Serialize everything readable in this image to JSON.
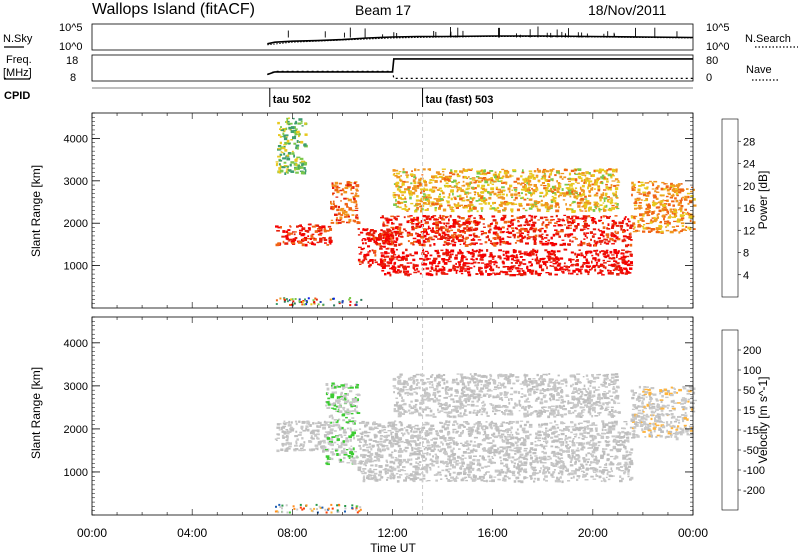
{
  "header": {
    "station": "Wallops Island (fitACF)",
    "beam": "Beam 17",
    "date": "18/Nov/2011"
  },
  "noise_panel": {
    "left_label": "N.Sky",
    "right_label": "N.Search",
    "left_ticks": [
      "10^5",
      "10^0"
    ],
    "right_ticks": [
      "10^5",
      "10^0"
    ]
  },
  "freq_panel": {
    "left_label_1": "Freq.",
    "left_label_2": "[MHz]",
    "right_label": "Nave",
    "left_ticks": [
      "18",
      "8"
    ],
    "right_ticks": [
      "80",
      "0"
    ]
  },
  "cpid_panel": {
    "label": "CPID",
    "programs": [
      {
        "name": "tau 502",
        "start_hour": 7.1
      },
      {
        "name": "tau (fast) 503",
        "start_hour": 13.2
      }
    ]
  },
  "colors": {
    "power": [
      "#0a1ee6",
      "#2346b4",
      "#2f7a5a",
      "#3e9e6e",
      "#7ac84a",
      "#e8c81e",
      "#f0961e",
      "#f06414",
      "#e61e0a",
      "#f50000"
    ],
    "velocity": [
      "#f50000",
      "#ff3c00",
      "#ff8c1e",
      "#ffb43c",
      "#c8c8c8",
      "#c8c8c8",
      "#3ccc32",
      "#2a9a4a",
      "#1e5fb4",
      "#1414c8"
    ],
    "ground_scatter": "#bebebe"
  },
  "chart_data": [
    {
      "type": "line",
      "name": "noise",
      "x_unit": "hour UT",
      "series": [
        {
          "name": "N.Sky",
          "x": [
            7.0,
            7.3,
            8,
            9,
            10,
            11,
            12,
            13,
            14,
            16,
            18,
            20,
            22,
            24
          ],
          "y": [
            1.2,
            1.5,
            1.7,
            1.8,
            2.0,
            2.3,
            2.5,
            2.6,
            2.6,
            2.7,
            2.7,
            2.6,
            2.5,
            2.4
          ]
        },
        {
          "name": "N.Search",
          "x": [
            7.0,
            8,
            10,
            12,
            14,
            16,
            18,
            20,
            22,
            24
          ],
          "y": [
            1.0,
            1.5,
            1.9,
            2.3,
            2.5,
            2.6,
            2.6,
            2.5,
            2.4,
            2.3
          ]
        }
      ]
    },
    {
      "type": "line",
      "name": "frequency-nave",
      "x_unit": "hour UT",
      "series": [
        {
          "name": "Freq.",
          "x": [
            7.0,
            7.3,
            12.0,
            12.05,
            24
          ],
          "y": [
            10.5,
            11.5,
            11.5,
            16.5,
            16.5
          ]
        },
        {
          "name": "Nave",
          "x": [
            7.0,
            7.3,
            12.0,
            12.05,
            24
          ],
          "y": [
            20,
            30,
            30,
            8,
            8
          ]
        }
      ]
    },
    {
      "type": "heatmap",
      "name": "power",
      "xlabel": "",
      "ylabel": "Slant Range [km]",
      "xlim": [
        0,
        24
      ],
      "ylim": [
        0,
        4600
      ],
      "yticks": [
        1000,
        2000,
        3000,
        4000
      ],
      "colorbar_label": "Power [dB]",
      "colorbar_ticks": [
        "4",
        "8",
        "12",
        "16",
        "20",
        "24",
        "28"
      ],
      "colorbar_range": [
        0,
        30
      ],
      "regions": [
        {
          "x": [
            7.3,
            9.5
          ],
          "y": [
            1500,
            2000
          ],
          "value": 26
        },
        {
          "x": [
            9.5,
            10.6
          ],
          "y": [
            2000,
            3000
          ],
          "value": 22
        },
        {
          "x": [
            10.6,
            12.0
          ],
          "y": [
            1000,
            1900
          ],
          "value": 27
        },
        {
          "x": [
            11.5,
            21.5
          ],
          "y": [
            800,
            1400
          ],
          "value": 28
        },
        {
          "x": [
            11.5,
            21.5
          ],
          "y": [
            1500,
            2200
          ],
          "value": 26
        },
        {
          "x": [
            12.0,
            21.0
          ],
          "y": [
            2300,
            3300
          ],
          "value": 18
        },
        {
          "x": [
            7.3,
            8.5
          ],
          "y": [
            3200,
            4500
          ],
          "value": 14
        },
        {
          "x": [
            21.5,
            24.0
          ],
          "y": [
            1800,
            3000
          ],
          "value": 20
        }
      ]
    },
    {
      "type": "heatmap",
      "name": "velocity",
      "xlabel": "Time UT",
      "ylabel": "Slant Range [km]",
      "xlim": [
        0,
        24
      ],
      "ylim": [
        0,
        4600
      ],
      "yticks": [
        1000,
        2000,
        3000,
        4000
      ],
      "xticks": [
        "00:00",
        "04:00",
        "08:00",
        "12:00",
        "16:00",
        "20:00",
        "00:00"
      ],
      "colorbar_label": "Velocity [m s^-1]",
      "colorbar_ticks": [
        "-200",
        "-100",
        "-50",
        "-15",
        "15",
        "50",
        "100",
        "200"
      ],
      "colorbar_range": [
        -250,
        250
      ],
      "regions": [
        {
          "x": [
            7.3,
            9.5
          ],
          "y": [
            1500,
            2200
          ],
          "value": 0
        },
        {
          "x": [
            9.3,
            10.6
          ],
          "y": [
            1200,
            3100
          ],
          "value": 40
        },
        {
          "x": [
            10.6,
            21.5
          ],
          "y": [
            800,
            2200
          ],
          "value": 0
        },
        {
          "x": [
            12.0,
            21.0
          ],
          "y": [
            2300,
            3300
          ],
          "value": -20
        },
        {
          "x": [
            21.5,
            24.0
          ],
          "y": [
            1800,
            3000
          ],
          "value": -30
        }
      ]
    }
  ]
}
